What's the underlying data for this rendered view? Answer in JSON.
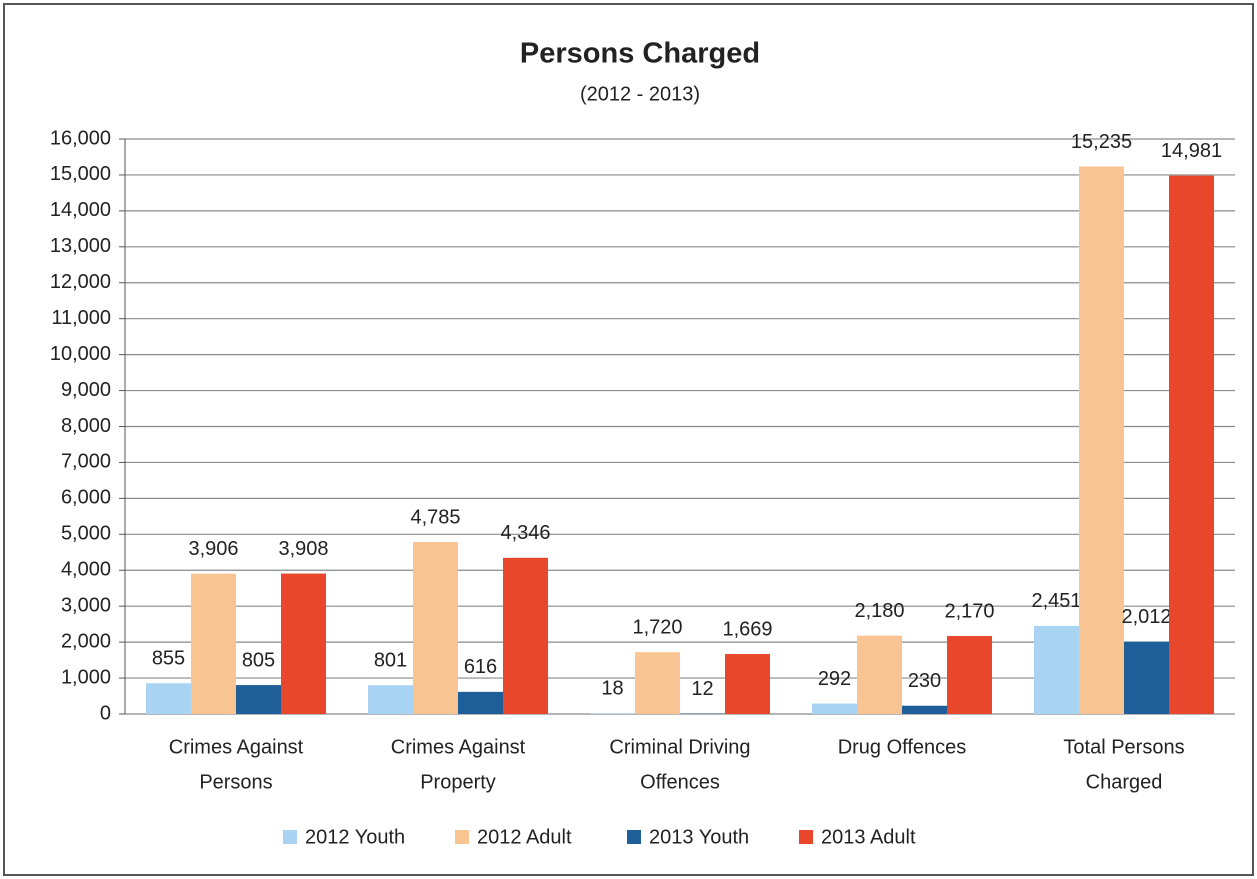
{
  "chart_data": {
    "type": "bar",
    "title": "Persons Charged",
    "subtitle": "(2012 - 2013)",
    "categories": [
      [
        "Crimes Against",
        "Persons"
      ],
      [
        "Crimes Against",
        "Property"
      ],
      [
        "Criminal Driving",
        "Offences"
      ],
      [
        "Drug Offences"
      ],
      [
        "Total Persons",
        "Charged"
      ]
    ],
    "series": [
      {
        "name": "2012 Youth",
        "color": "#a9d3f3",
        "values": [
          855,
          801,
          18,
          292,
          2451
        ],
        "value_labels": [
          "855",
          "801",
          "18",
          "292",
          "2,451"
        ]
      },
      {
        "name": "2012 Adult",
        "color": "#f8c491",
        "values": [
          3906,
          4785,
          1720,
          2180,
          15235
        ],
        "value_labels": [
          "3,906",
          "4,785",
          "1,720",
          "2,180",
          "15,235"
        ]
      },
      {
        "name": "2013 Youth",
        "color": "#1f5f99",
        "values": [
          805,
          616,
          12,
          230,
          2012
        ],
        "value_labels": [
          "805",
          "616",
          "12",
          "230",
          "2,012"
        ]
      },
      {
        "name": "2013 Adult",
        "color": "#e8472c",
        "values": [
          3908,
          4346,
          1669,
          2170,
          14981
        ],
        "value_labels": [
          "3,908",
          "4,346",
          "1,669",
          "2,170",
          "14,981"
        ]
      }
    ],
    "ylim": [
      0,
      16000
    ],
    "yticks": [
      0,
      {
        "value": 1000,
        "label": "1,000"
      },
      {
        "value": 2000,
        "label": "2,000"
      },
      {
        "value": 3000,
        "label": "3,000"
      },
      {
        "value": 4000,
        "label": "4,000"
      },
      {
        "value": 5000,
        "label": "5,000"
      },
      {
        "value": 6000,
        "label": "6,000"
      },
      {
        "value": 7000,
        "label": "7,000"
      },
      {
        "value": 8000,
        "label": "8,000"
      },
      {
        "value": 9000,
        "label": "9,000"
      },
      {
        "value": 10000,
        "label": "10,000"
      },
      {
        "value": 11000,
        "label": "11,000"
      },
      {
        "value": 12000,
        "label": "12,000"
      },
      {
        "value": 13000,
        "label": "13,000"
      },
      {
        "value": 14000,
        "label": "14,000"
      },
      {
        "value": 15000,
        "label": "15,000"
      },
      {
        "value": 16000,
        "label": "16,000"
      }
    ],
    "grid": true,
    "legend": "bottom"
  }
}
